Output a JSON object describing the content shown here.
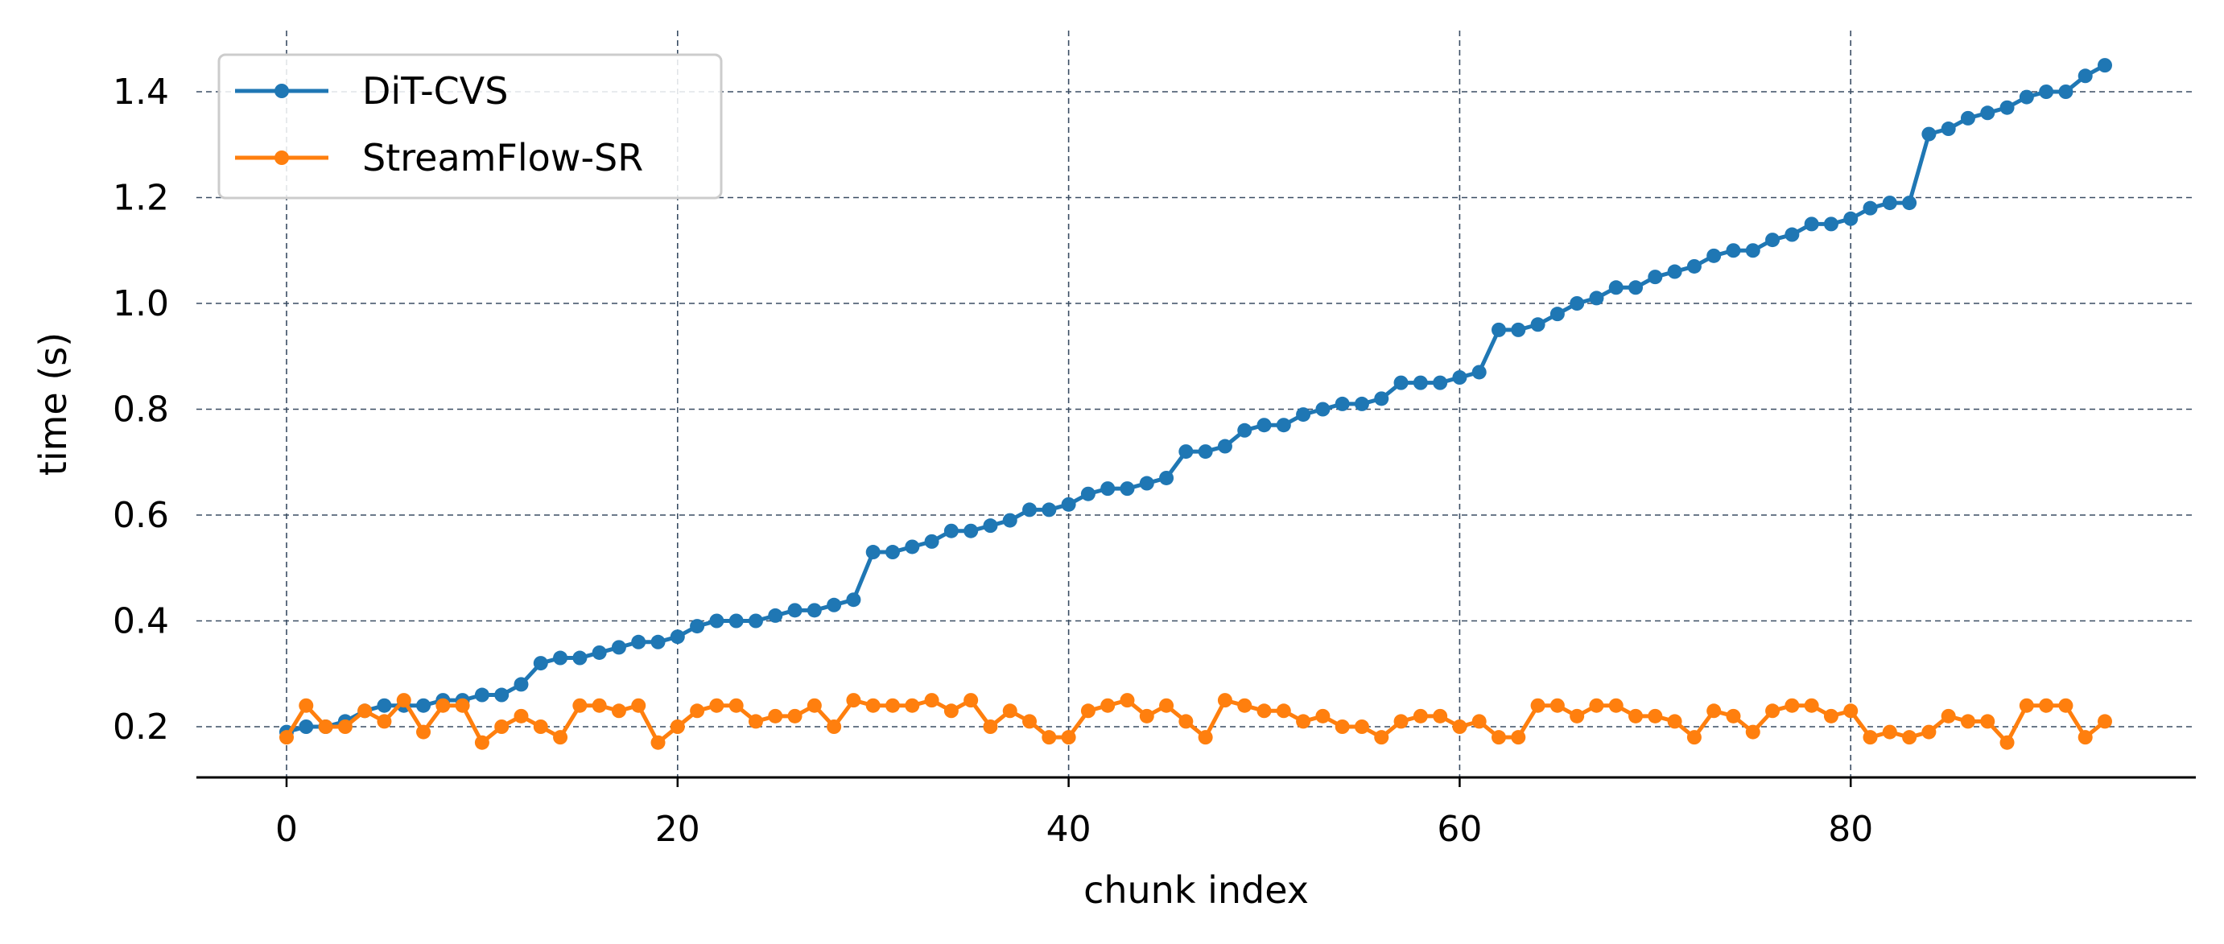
{
  "chart_data": {
    "type": "line",
    "title": "",
    "xlabel": "chunk index",
    "ylabel": "time (s)",
    "xlim": [
      -5,
      97
    ],
    "ylim": [
      0.1,
      1.5
    ],
    "xticks": [
      0,
      20,
      40,
      60,
      80
    ],
    "yticks": [
      0.2,
      0.4,
      0.6,
      0.8,
      1.0,
      1.2,
      1.4
    ],
    "ytick_labels": [
      "0.2",
      "0.4",
      "0.6",
      "0.8",
      "1.0",
      "1.2",
      "1.4"
    ],
    "grid": true,
    "legend_position": "top-left",
    "x": [
      0,
      1,
      2,
      3,
      4,
      5,
      6,
      7,
      8,
      9,
      10,
      11,
      12,
      13,
      14,
      15,
      16,
      17,
      18,
      19,
      20,
      21,
      22,
      23,
      24,
      25,
      26,
      27,
      28,
      29,
      30,
      31,
      32,
      33,
      34,
      35,
      36,
      37,
      38,
      39,
      40,
      41,
      42,
      43,
      44,
      45,
      46,
      47,
      48,
      49,
      50,
      51,
      52,
      53,
      54,
      55,
      56,
      57,
      58,
      59,
      60,
      61,
      62,
      63,
      64,
      65,
      66,
      67,
      68,
      69,
      70,
      71,
      72,
      73,
      74,
      75,
      76,
      77,
      78,
      79,
      80,
      81,
      82,
      83,
      84,
      85,
      86,
      87,
      88,
      89,
      90,
      91,
      92,
      93
    ],
    "series": [
      {
        "name": "DiT-CVS",
        "color": "#1f77b4",
        "values": [
          0.19,
          0.2,
          0.2,
          0.21,
          0.23,
          0.24,
          0.24,
          0.24,
          0.25,
          0.25,
          0.26,
          0.26,
          0.28,
          0.32,
          0.33,
          0.33,
          0.34,
          0.35,
          0.36,
          0.36,
          0.37,
          0.39,
          0.4,
          0.4,
          0.4,
          0.41,
          0.42,
          0.42,
          0.43,
          0.44,
          0.53,
          0.53,
          0.54,
          0.55,
          0.57,
          0.57,
          0.58,
          0.59,
          0.61,
          0.61,
          0.62,
          0.64,
          0.65,
          0.65,
          0.66,
          0.67,
          0.72,
          0.72,
          0.73,
          0.76,
          0.77,
          0.77,
          0.79,
          0.8,
          0.81,
          0.81,
          0.82,
          0.85,
          0.85,
          0.85,
          0.86,
          0.87,
          0.95,
          0.95,
          0.96,
          0.98,
          1.0,
          1.01,
          1.03,
          1.03,
          1.05,
          1.06,
          1.07,
          1.09,
          1.1,
          1.1,
          1.12,
          1.13,
          1.15,
          1.15,
          1.16,
          1.18,
          1.19,
          1.19,
          1.32,
          1.33,
          1.35,
          1.36,
          1.37,
          1.39,
          1.4,
          1.4,
          1.43,
          1.45
        ]
      },
      {
        "name": "StreamFlow-SR",
        "color": "#ff7f0e",
        "values": [
          0.18,
          0.24,
          0.2,
          0.2,
          0.23,
          0.21,
          0.25,
          0.19,
          0.24,
          0.24,
          0.17,
          0.2,
          0.22,
          0.2,
          0.18,
          0.24,
          0.24,
          0.23,
          0.24,
          0.17,
          0.2,
          0.23,
          0.24,
          0.24,
          0.21,
          0.22,
          0.22,
          0.24,
          0.2,
          0.25,
          0.24,
          0.24,
          0.24,
          0.25,
          0.23,
          0.25,
          0.2,
          0.23,
          0.21,
          0.18,
          0.18,
          0.23,
          0.24,
          0.25,
          0.22,
          0.24,
          0.21,
          0.18,
          0.25,
          0.24,
          0.23,
          0.23,
          0.21,
          0.22,
          0.2,
          0.2,
          0.18,
          0.21,
          0.22,
          0.22,
          0.2,
          0.21,
          0.18,
          0.18,
          0.24,
          0.24,
          0.22,
          0.24,
          0.24,
          0.22,
          0.22,
          0.21,
          0.18,
          0.23,
          0.22,
          0.19,
          0.23,
          0.24,
          0.24,
          0.22,
          0.23,
          0.18,
          0.19,
          0.18,
          0.19,
          0.22,
          0.21,
          0.21,
          0.17,
          0.24,
          0.24,
          0.24,
          0.18,
          0.21
        ]
      }
    ]
  }
}
